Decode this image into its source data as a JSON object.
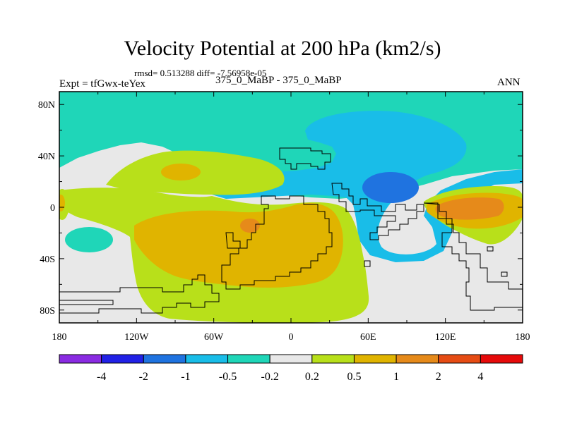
{
  "chart_data": {
    "type": "heatmap",
    "title": "Velocity Potential at 200 hPa (km2/s)",
    "stats_text": "rmsd= 0.513288 diff= -7.56958e-05",
    "left_label": "Expt = tfGwx-teYex",
    "center_label": "375_0_MaBP - 375_0_MaBP",
    "right_label": "ANN",
    "x_range": [
      -180,
      180
    ],
    "y_range": [
      -90,
      90
    ],
    "x_ticks": [
      {
        "value": -180,
        "label": "180"
      },
      {
        "value": -120,
        "label": "120W"
      },
      {
        "value": -60,
        "label": "60W"
      },
      {
        "value": 0,
        "label": "0"
      },
      {
        "value": 60,
        "label": "60E"
      },
      {
        "value": 120,
        "label": "120E"
      },
      {
        "value": 180,
        "label": "180"
      }
    ],
    "y_ticks": [
      {
        "value": 80,
        "label": "80N"
      },
      {
        "value": 40,
        "label": "40N"
      },
      {
        "value": 0,
        "label": "0"
      },
      {
        "value": -40,
        "label": "40S"
      },
      {
        "value": -80,
        "label": "80S"
      }
    ],
    "colorbar": {
      "colors": [
        "#8a2be2",
        "#2121e6",
        "#1f73e0",
        "#19bde8",
        "#1fd6b8",
        "#e8e8e8",
        "#b8e01a",
        "#e0b400",
        "#e68a1a",
        "#e64c14",
        "#e60a0a"
      ],
      "boundaries": [
        -4,
        -2,
        -1,
        -0.5,
        -0.2,
        0.2,
        0.5,
        1,
        2,
        4
      ],
      "labels": [
        "-4",
        "-2",
        "-1",
        "-0.5",
        "-0.2",
        "0.2",
        "0.5",
        "1",
        "2",
        "4"
      ]
    },
    "regions": [
      {
        "name": "teal-high-latitude-north",
        "level": "-0.5 to -0.2",
        "color": "#1fd6b8"
      },
      {
        "name": "cyan-north-asia",
        "level": "-1 to -0.5",
        "color": "#19bde8"
      },
      {
        "name": "blue-south-asia-min",
        "level": "-2 to -1",
        "color": "#1f73e0"
      },
      {
        "name": "green-tropical-atlantic",
        "level": "0.2 to 0.5",
        "color": "#b8e01a"
      },
      {
        "name": "orange-south-atlantic",
        "level": "0.5 to 1",
        "color": "#e0b400"
      },
      {
        "name": "darkorange-maritime-max",
        "level": "1 to 2",
        "color": "#e68a1a"
      }
    ]
  }
}
